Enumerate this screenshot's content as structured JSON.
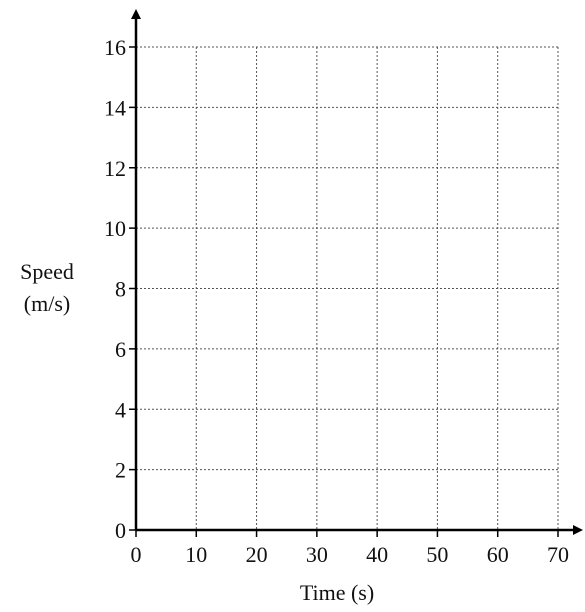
{
  "chart_data": {
    "type": "scatter",
    "title": "",
    "xlabel": "Time (s)",
    "ylabel_lines": [
      "Speed",
      "(m/s)"
    ],
    "xlim": [
      0,
      70
    ],
    "ylim": [
      0,
      16
    ],
    "x_ticks": [
      0,
      10,
      20,
      30,
      40,
      50,
      60,
      70
    ],
    "y_ticks": [
      0,
      2,
      4,
      6,
      8,
      10,
      12,
      14,
      16
    ],
    "grid": true,
    "grid_style": "dotted",
    "series": []
  }
}
